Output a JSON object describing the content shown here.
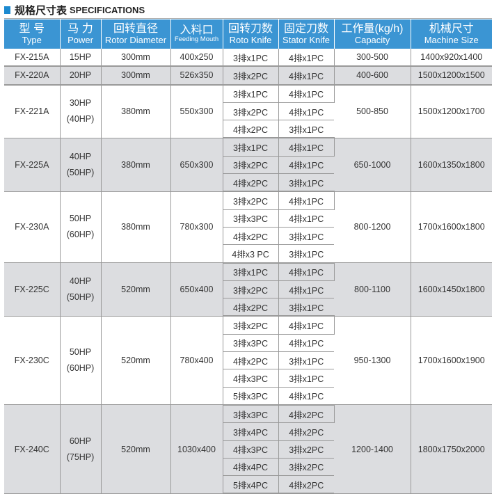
{
  "title": {
    "cn": "规格尺寸表",
    "en": "SPECIFICATIONS"
  },
  "colors": {
    "header": "#3b95d3",
    "accent": "#1c8ad0",
    "row_alt": "#dcdde0"
  },
  "headers": [
    {
      "cn": "型 号",
      "en": "Type"
    },
    {
      "cn": "马 力",
      "en": "Power"
    },
    {
      "cn": "回转直径",
      "en": "Rotor Diameter"
    },
    {
      "cn": "入料口",
      "en": "Feeding Mouth"
    },
    {
      "cn": "回转刀数",
      "en": "Roto Knife"
    },
    {
      "cn": "固定刀数",
      "en": "Stator Knife"
    },
    {
      "cn": "工作量(kg/h)",
      "en": "Capacity"
    },
    {
      "cn": "机械尺寸",
      "en": "Machine Size"
    }
  ],
  "rows": [
    {
      "type": "FX-215A",
      "power": [
        "15HP"
      ],
      "rotor": "300mm",
      "feed": "400x250",
      "knives": [
        [
          "3排x1PC",
          "4排x1PC"
        ]
      ],
      "capacity": "300-500",
      "size": "1400x920x1400",
      "gray": false
    },
    {
      "type": "FX-220A",
      "power": [
        "20HP"
      ],
      "rotor": "300mm",
      "feed": "526x350",
      "knives": [
        [
          "3排x2PC",
          "4排x1PC"
        ]
      ],
      "capacity": "400-600",
      "size": "1500x1200x1500",
      "gray": true
    },
    {
      "type": "FX-221A",
      "power": [
        "30HP",
        "(40HP)"
      ],
      "rotor": "380mm",
      "feed": "550x300",
      "knives": [
        [
          "3排x1PC",
          "4排x1PC"
        ],
        [
          "3排x2PC",
          "4排x1PC"
        ],
        [
          "4排x2PC",
          "3排x1PC"
        ]
      ],
      "capacity": "500-850",
      "size": "1500x1200x1700",
      "gray": false
    },
    {
      "type": "FX-225A",
      "power": [
        "40HP",
        "(50HP)"
      ],
      "rotor": "380mm",
      "feed": "650x300",
      "knives": [
        [
          "3排x1PC",
          "4排x1PC"
        ],
        [
          "3排x2PC",
          "4排x1PC"
        ],
        [
          "4排x2PC",
          "3排x1PC"
        ]
      ],
      "capacity": "650-1000",
      "size": "1600x1350x1800",
      "gray": true
    },
    {
      "type": "FX-230A",
      "power": [
        "50HP",
        "(60HP)"
      ],
      "rotor": "380mm",
      "feed": "780x300",
      "knives": [
        [
          "3排x2PC",
          "4排x1PC"
        ],
        [
          "3排x3PC",
          "4排x1PC"
        ],
        [
          "4排x2PC",
          "3排x1PC"
        ],
        [
          "4排x3 PC",
          "3排x1PC"
        ]
      ],
      "capacity": "800-1200",
      "size": "1700x1600x1800",
      "gray": false
    },
    {
      "type": "FX-225C",
      "power": [
        "40HP",
        "(50HP)"
      ],
      "rotor": "520mm",
      "feed": "650x400",
      "knives": [
        [
          "3排x1PC",
          "4排x1PC"
        ],
        [
          "3排x2PC",
          "4排x1PC"
        ],
        [
          "4排x2PC",
          "3排x1PC"
        ]
      ],
      "capacity": "800-1100",
      "size": "1600x1450x1800",
      "gray": true
    },
    {
      "type": "FX-230C",
      "power": [
        "50HP",
        "(60HP)"
      ],
      "rotor": "520mm",
      "feed": "780x400",
      "knives": [
        [
          "3排x2PC",
          "4排x1PC"
        ],
        [
          "3排x3PC",
          "4排x1PC"
        ],
        [
          "4排x2PC",
          "3排x1PC"
        ],
        [
          "4排x3PC",
          "3排x1PC"
        ],
        [
          "5排x3PC",
          "4排x1PC"
        ]
      ],
      "capacity": "950-1300",
      "size": "1700x1600x1900",
      "gray": false
    },
    {
      "type": "FX-240C",
      "power": [
        "60HP",
        "(75HP)"
      ],
      "rotor": "520mm",
      "feed": "1030x400",
      "knives": [
        [
          "3排x3PC",
          "4排x2PC"
        ],
        [
          "3排x4PC",
          "4排x2PC"
        ],
        [
          "4排x3PC",
          "3排x2PC"
        ],
        [
          "4排x4PC",
          "3排x2PC"
        ],
        [
          "5排x4PC",
          "4排x2PC"
        ]
      ],
      "capacity": "1200-1400",
      "size": "1800x1750x2000",
      "gray": true
    }
  ]
}
